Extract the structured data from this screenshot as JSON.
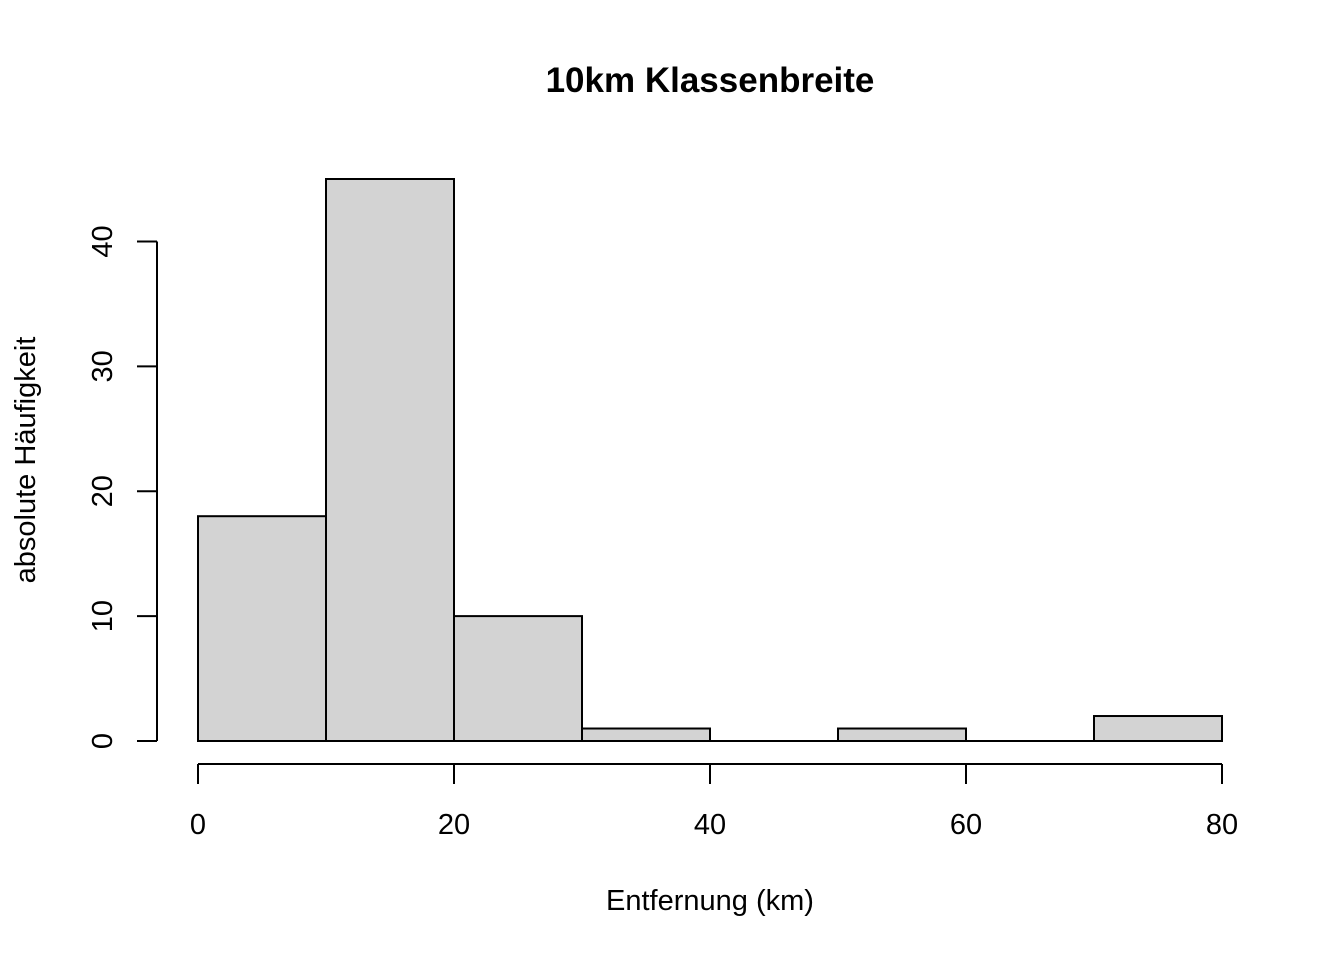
{
  "chart_data": {
    "type": "bar",
    "title": "10km Klassenbreite",
    "xlabel": "Entfernung (km)",
    "ylabel": "absolute Häufigkeit",
    "bins": [
      {
        "start": 0,
        "end": 10,
        "count": 18
      },
      {
        "start": 10,
        "end": 20,
        "count": 45
      },
      {
        "start": 20,
        "end": 30,
        "count": 10
      },
      {
        "start": 30,
        "end": 40,
        "count": 1
      },
      {
        "start": 40,
        "end": 50,
        "count": 0
      },
      {
        "start": 50,
        "end": 60,
        "count": 1
      },
      {
        "start": 60,
        "end": 70,
        "count": 0
      },
      {
        "start": 70,
        "end": 80,
        "count": 2
      }
    ],
    "xlim": [
      0,
      80
    ],
    "ylim": [
      0,
      45
    ],
    "x_ticks": [
      0,
      20,
      40,
      60,
      80
    ],
    "y_ticks": [
      0,
      10,
      20,
      30,
      40
    ],
    "bar_color": "#d3d3d3",
    "grid": false
  }
}
